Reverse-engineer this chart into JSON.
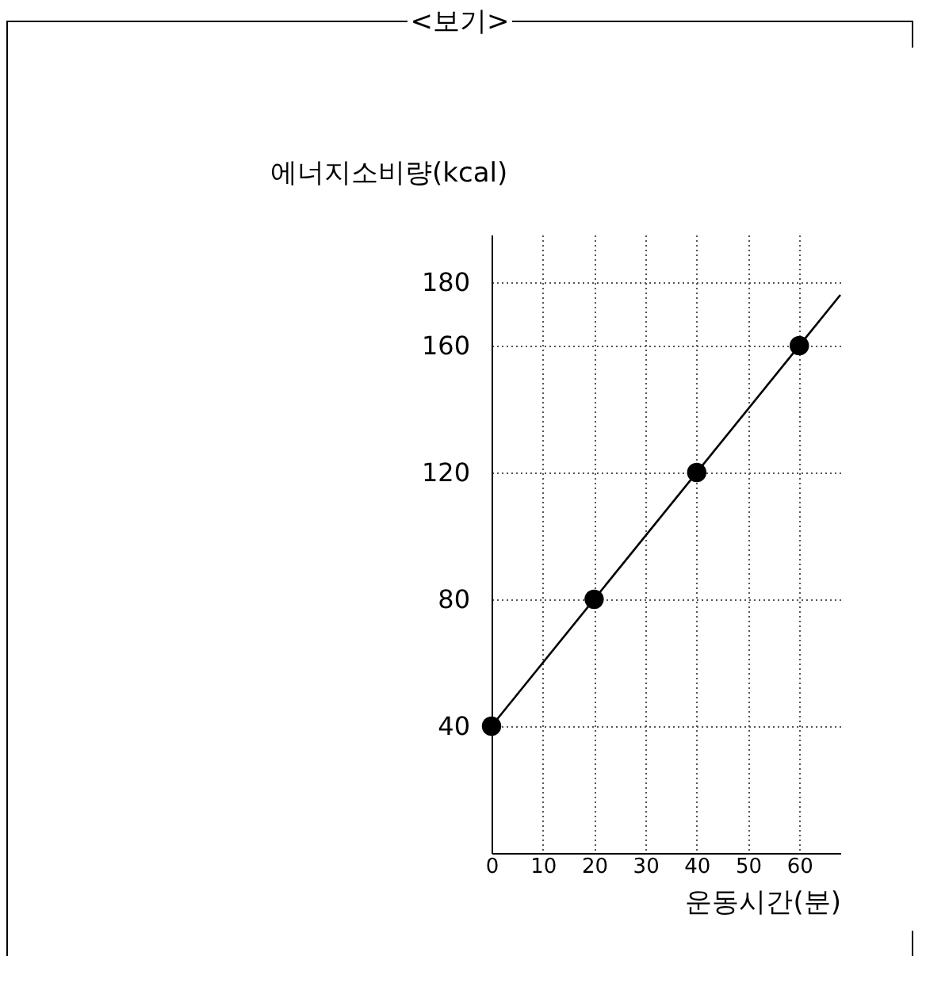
{
  "chart_data": {
    "type": "scatter",
    "title": "<보기>",
    "xlabel": "운동시간(분)",
    "ylabel": "에너지소비량(kcal)",
    "xlim": [
      0,
      68
    ],
    "ylim": [
      0,
      195
    ],
    "xticks": [
      0,
      10,
      20,
      30,
      40,
      50,
      60
    ],
    "yticks": [
      40,
      80,
      120,
      160,
      180
    ],
    "grid": true,
    "series": [
      {
        "type": "line",
        "x": [
          0,
          68
        ],
        "values": [
          40,
          176
        ],
        "color": "#000000"
      },
      {
        "x": [
          0,
          20,
          40,
          60
        ],
        "values": [
          40,
          80,
          120,
          160
        ],
        "color": "#000000",
        "marker": "circle"
      }
    ]
  }
}
